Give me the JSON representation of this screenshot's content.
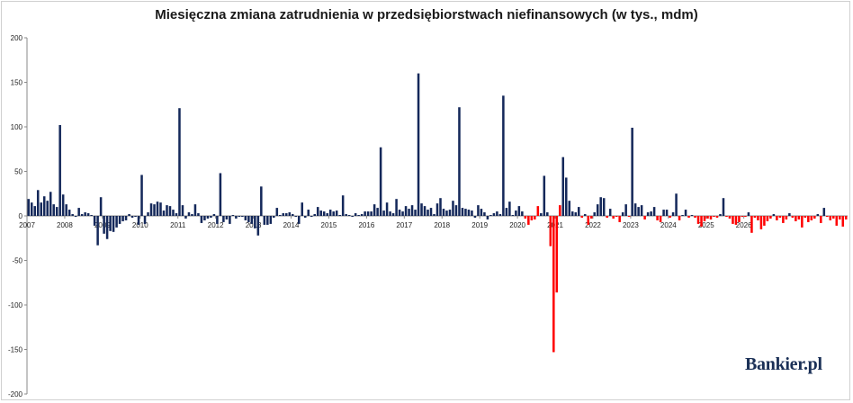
{
  "chart_data": {
    "type": "bar",
    "title": "Miesięczna zmiana zatrudnienia w przedsiębiorstwach niefinansowych (w tys., mdm)",
    "xlabel": "",
    "ylabel": "",
    "ylim": [
      -200,
      200
    ],
    "yticks": [
      200,
      150,
      100,
      50,
      0,
      -50,
      -100,
      -150,
      -200
    ],
    "grid": false,
    "legend": "none",
    "x_start": "2007-01",
    "year_labels": [
      "2007",
      "2008",
      "2009",
      "2010",
      "2011",
      "2012",
      "2013",
      "2014",
      "2015",
      "2016",
      "2017",
      "2018",
      "2019",
      "2020",
      "2021",
      "2022",
      "2023",
      "2024",
      "2025",
      "2026"
    ],
    "colors": {
      "primary": "#14285a",
      "highlight": "#ff0000"
    },
    "series": [
      {
        "color": "#14285a",
        "values": [
          19,
          15,
          11,
          29,
          15,
          22,
          17,
          27,
          13,
          10,
          102,
          24,
          13,
          7,
          2,
          -1,
          9,
          2,
          4,
          3,
          1,
          -11,
          -33,
          21,
          -20,
          -26,
          -17,
          -18,
          -13,
          -9,
          -6,
          -5,
          2,
          -2,
          -1,
          -10,
          46,
          -9,
          4,
          14,
          13,
          16,
          15,
          6,
          12,
          11,
          7,
          3,
          121,
          12,
          -3,
          4,
          2,
          13,
          3,
          -8,
          -5,
          -3,
          -2,
          2,
          -9,
          48,
          -7,
          -4,
          -9,
          1,
          -3,
          -1,
          -1,
          -5,
          -7,
          -9,
          -14,
          -22,
          33,
          -10,
          -10,
          -9,
          -2,
          9,
          1,
          3,
          3,
          4,
          2,
          -1,
          -9,
          15,
          -2,
          7,
          -1,
          2,
          10,
          6,
          5,
          3,
          7,
          5,
          6,
          1,
          23,
          2,
          1,
          -1,
          3,
          1,
          2,
          5,
          5,
          5,
          13,
          9,
          77,
          6,
          15,
          5,
          3,
          19,
          7,
          5,
          11,
          8,
          12,
          7,
          160,
          14,
          11,
          7,
          9,
          2,
          14,
          20,
          8,
          6,
          7,
          17,
          12,
          122,
          9,
          8,
          7,
          6,
          -2,
          12,
          8,
          4,
          -4,
          1,
          3,
          5,
          2,
          135,
          9,
          16,
          1,
          6,
          11,
          5,
          -3,
          -10,
          -5,
          -4,
          11,
          3,
          45,
          4,
          -34,
          -153,
          -86,
          12,
          66,
          43,
          17,
          5,
          4,
          10,
          -2,
          2,
          -10,
          -3,
          4,
          13,
          21,
          20,
          -2,
          8,
          -3,
          -1,
          -7,
          4,
          13,
          -1,
          99,
          14,
          10,
          12,
          -4,
          4,
          5,
          10,
          -5,
          -7,
          7,
          7,
          -2,
          4,
          25,
          -5,
          1,
          7,
          -2,
          1,
          -2,
          -9,
          -12,
          -6,
          -3,
          -4,
          -1,
          -2,
          2,
          20,
          -1,
          -3,
          -9,
          -10,
          -7,
          -1,
          -1,
          4,
          -19,
          -2,
          -5,
          -15,
          -11,
          -6,
          -3,
          2,
          -5,
          -2,
          -8,
          -4,
          3,
          -2,
          -6,
          -4,
          -13,
          -2,
          -7,
          -5,
          -3,
          2,
          -8,
          9,
          -1,
          -5,
          -3,
          -11,
          -4,
          -12,
          -4
        ]
      }
    ]
  },
  "watermark": {
    "text": "Bankier.pl"
  }
}
